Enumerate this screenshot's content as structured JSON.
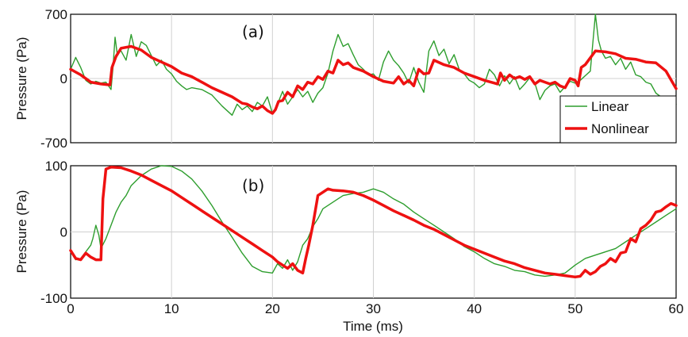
{
  "chart_data": [
    {
      "type": "line",
      "panel_label": "(a)",
      "ylabel": "Pressure (Pa)",
      "xlim": [
        0,
        60
      ],
      "ylim": [
        -700,
        700
      ],
      "yticks": [
        "700",
        "0",
        "-700"
      ],
      "grid": true,
      "legend": {
        "position": "lower-right",
        "entries": [
          "Linear",
          "Nonlinear"
        ]
      },
      "series": [
        {
          "name": "Linear",
          "color": "#2e9e2e",
          "x": [
            0,
            0.5,
            1,
            1.5,
            2,
            2.5,
            3,
            3.5,
            4,
            4.2,
            4.4,
            4.6,
            5,
            5.5,
            6,
            6.5,
            7,
            7.5,
            8,
            8.5,
            9,
            9.5,
            10,
            10.5,
            11,
            11.5,
            12,
            13,
            14,
            15,
            16,
            16.5,
            17,
            17.5,
            18,
            18.5,
            19,
            19.5,
            20,
            20.5,
            21,
            21.5,
            22,
            22.5,
            23,
            23.5,
            24,
            24.5,
            25,
            25.5,
            26,
            26.5,
            27,
            27.5,
            28,
            28.5,
            29,
            29.5,
            30,
            30.5,
            31,
            31.5,
            32,
            32.5,
            33,
            33.5,
            34,
            34.5,
            35,
            35.5,
            36,
            36.5,
            37,
            37.5,
            38,
            38.5,
            39,
            39.5,
            40,
            40.5,
            41,
            41.5,
            42,
            42.5,
            43,
            43.5,
            44,
            44.5,
            45,
            45.5,
            46,
            46.5,
            47,
            47.5,
            48,
            48.5,
            49,
            49.5,
            50,
            50.5,
            51,
            51.5,
            52,
            52.3,
            52.6,
            53,
            53.5,
            54,
            54.5,
            55,
            55.5,
            56,
            56.5,
            57,
            57.5,
            58,
            58.5,
            59,
            59.5,
            60
          ],
          "y": [
            100,
            230,
            120,
            -20,
            -60,
            -30,
            -50,
            -40,
            -120,
            120,
            450,
            280,
            300,
            200,
            480,
            240,
            400,
            360,
            250,
            140,
            200,
            100,
            50,
            -30,
            -80,
            -120,
            -100,
            -120,
            -180,
            -300,
            -400,
            -280,
            -340,
            -300,
            -360,
            -260,
            -300,
            -200,
            -380,
            -280,
            -140,
            -280,
            -200,
            -120,
            -200,
            -140,
            -260,
            -160,
            -100,
            60,
            300,
            480,
            350,
            380,
            260,
            150,
            100,
            40,
            50,
            -20,
            180,
            300,
            200,
            140,
            60,
            -50,
            120,
            -40,
            -150,
            300,
            410,
            250,
            320,
            160,
            260,
            100,
            50,
            -20,
            -50,
            -100,
            -60,
            100,
            40,
            -80,
            30,
            -60,
            20,
            -120,
            -60,
            10,
            -50,
            -230,
            -130,
            -80,
            -60,
            -150,
            -90,
            -30,
            -50,
            -20,
            30,
            80,
            700,
            420,
            300,
            220,
            240,
            150,
            220,
            100,
            180,
            40,
            20,
            -40,
            -60,
            -160,
            -200,
            -230,
            -250,
            -280
          ]
        },
        {
          "name": "Nonlinear",
          "color": "#ee1111",
          "x": [
            0,
            1,
            2,
            3,
            3.9,
            4.1,
            4.5,
            5,
            6,
            7,
            8,
            9,
            10,
            11,
            12,
            13,
            14,
            15,
            16,
            17,
            17.5,
            18,
            18.5,
            19,
            19.5,
            20,
            20.3,
            20.6,
            21,
            21.5,
            22,
            22.5,
            23,
            23.5,
            24,
            24.5,
            25,
            25.5,
            26,
            26.5,
            27,
            27.5,
            28,
            29,
            30,
            31,
            32,
            32.5,
            33,
            33.5,
            34,
            34.5,
            35,
            35.5,
            36,
            37,
            38,
            39,
            40,
            41,
            42,
            42.3,
            42.6,
            43,
            43.5,
            44,
            44.5,
            45,
            45.5,
            46,
            46.5,
            47,
            47.5,
            48,
            48.5,
            49,
            49.5,
            50,
            50.3,
            50.6,
            51,
            52,
            53,
            54,
            55,
            56,
            57,
            58,
            59,
            60
          ],
          "y": [
            100,
            40,
            -40,
            -60,
            -70,
            120,
            240,
            330,
            350,
            310,
            230,
            180,
            130,
            60,
            20,
            -40,
            -100,
            -150,
            -200,
            -270,
            -280,
            -310,
            -330,
            -300,
            -350,
            -380,
            -340,
            -250,
            -240,
            -150,
            -200,
            -80,
            -120,
            -40,
            -60,
            20,
            -10,
            80,
            60,
            200,
            150,
            170,
            120,
            80,
            20,
            -30,
            -50,
            20,
            -60,
            -20,
            -80,
            100,
            50,
            60,
            200,
            150,
            120,
            60,
            20,
            -20,
            -50,
            -60,
            60,
            -20,
            40,
            0,
            20,
            -10,
            20,
            -60,
            -20,
            -40,
            -60,
            -40,
            -80,
            -100,
            0,
            -20,
            -80,
            120,
            150,
            300,
            290,
            270,
            220,
            210,
            180,
            170,
            80,
            -110
          ]
        }
      ]
    },
    {
      "type": "line",
      "panel_label": "(b)",
      "xlabel": "Time (ms)",
      "ylabel": "Pressure (Pa)",
      "xlim": [
        0,
        60
      ],
      "ylim": [
        -100,
        100
      ],
      "xticks": [
        "0",
        "10",
        "20",
        "30",
        "40",
        "50",
        "60"
      ],
      "yticks": [
        "100",
        "0",
        "-100"
      ],
      "grid": true,
      "series": [
        {
          "name": "Linear",
          "color": "#2e9e2e",
          "x": [
            0,
            0.5,
            1,
            1.5,
            2,
            2.2,
            2.5,
            2.8,
            3,
            3.5,
            4,
            4.5,
            5,
            5.5,
            6,
            7,
            8,
            9,
            10,
            11,
            12,
            13,
            14,
            15,
            16,
            17,
            18,
            19,
            20,
            20.5,
            21,
            21.5,
            22,
            22.5,
            23,
            23.5,
            24,
            24.5,
            25,
            26,
            27,
            28,
            29,
            30,
            31,
            32,
            33,
            34,
            35,
            36,
            37,
            38,
            39,
            40,
            41,
            42,
            43,
            44,
            45,
            46,
            47,
            48,
            49,
            50,
            51,
            52,
            53,
            54,
            55,
            56,
            57,
            58,
            59,
            60
          ],
          "y": [
            -30,
            -42,
            -40,
            -30,
            -20,
            -10,
            10,
            -5,
            -25,
            -10,
            10,
            30,
            45,
            55,
            70,
            85,
            95,
            100,
            99,
            92,
            80,
            62,
            40,
            15,
            -8,
            -32,
            -52,
            -60,
            -62,
            -48,
            -55,
            -42,
            -58,
            -45,
            -20,
            -10,
            8,
            20,
            35,
            45,
            55,
            58,
            60,
            65,
            60,
            50,
            42,
            30,
            20,
            10,
            0,
            -10,
            -22,
            -30,
            -40,
            -48,
            -52,
            -58,
            -60,
            -65,
            -67,
            -65,
            -62,
            -50,
            -40,
            -35,
            -30,
            -25,
            -15,
            -5,
            5,
            15,
            25,
            35
          ]
        },
        {
          "name": "Nonlinear",
          "color": "#ee1111",
          "x": [
            0,
            0.5,
            1,
            1.5,
            2,
            2.5,
            3,
            3.2,
            3.5,
            4,
            5,
            6,
            7,
            8,
            9,
            10,
            11,
            12,
            13,
            14,
            15,
            16,
            17,
            18,
            19,
            20,
            20.5,
            21,
            21.5,
            22,
            22.5,
            23,
            23.3,
            23.6,
            24,
            24.5,
            25,
            25.5,
            26,
            27,
            28,
            29,
            30,
            31,
            32,
            33,
            34,
            35,
            36,
            37,
            38,
            39,
            40,
            41,
            42,
            43,
            44,
            45,
            46,
            47,
            48,
            49,
            50,
            50.5,
            51,
            51.5,
            52,
            52.5,
            53,
            53.5,
            54,
            54.5,
            55,
            55.5,
            56,
            56.5,
            57,
            57.5,
            58,
            58.5,
            59,
            59.5,
            60
          ],
          "y": [
            -28,
            -40,
            -42,
            -32,
            -38,
            -42,
            -42,
            50,
            95,
            98,
            97,
            92,
            86,
            78,
            70,
            62,
            52,
            42,
            32,
            22,
            12,
            2,
            -8,
            -18,
            -28,
            -38,
            -45,
            -50,
            -55,
            -48,
            -58,
            -62,
            -40,
            -20,
            10,
            55,
            60,
            65,
            63,
            62,
            60,
            55,
            48,
            40,
            32,
            25,
            18,
            10,
            4,
            -4,
            -12,
            -20,
            -26,
            -32,
            -38,
            -44,
            -48,
            -54,
            -58,
            -62,
            -64,
            -66,
            -68,
            -67,
            -58,
            -64,
            -60,
            -52,
            -48,
            -40,
            -45,
            -32,
            -30,
            -10,
            -15,
            5,
            10,
            18,
            30,
            32,
            38,
            43,
            40
          ]
        }
      ]
    }
  ]
}
